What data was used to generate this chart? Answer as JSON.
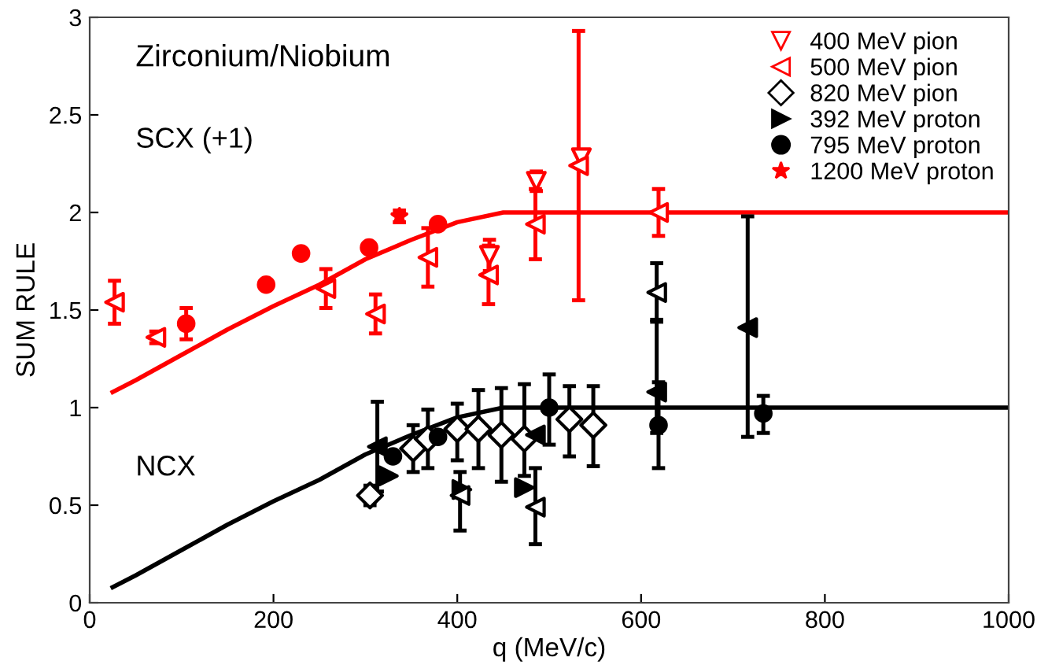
{
  "chart_data": {
    "type": "scatter",
    "title": "Zirconium/Niobium",
    "xlabel": "q (MeV/c)",
    "ylabel": "SUM RULE",
    "xlim": [
      0,
      1000
    ],
    "xticks": [
      0,
      200,
      400,
      600,
      800,
      1000
    ],
    "ylim": [
      0,
      3
    ],
    "yticks": [
      0,
      0.5,
      1,
      1.5,
      2,
      2.5,
      3
    ],
    "grid": false,
    "legend": "top right",
    "annotations": [
      "SCX (+1)",
      "NCX"
    ],
    "series": [
      {
        "type": "line",
        "color": "#ff0000",
        "marker": "none",
        "line_style": "solid",
        "x": [
          25,
          50,
          100,
          150,
          200,
          250,
          300,
          350,
          400,
          450,
          1000
        ],
        "values": [
          1.08,
          1.14,
          1.27,
          1.4,
          1.52,
          1.63,
          1.76,
          1.86,
          1.95,
          2.0,
          2.0
        ]
      },
      {
        "type": "line",
        "color": "#000000",
        "marker": "none",
        "line_style": "solid",
        "x": [
          25,
          50,
          100,
          150,
          200,
          250,
          300,
          350,
          400,
          450,
          1000
        ],
        "values": [
          0.08,
          0.14,
          0.27,
          0.4,
          0.52,
          0.63,
          0.76,
          0.86,
          0.95,
          1.0,
          1.0
        ]
      },
      {
        "name": "400 MeV pion",
        "color": "#ff0000",
        "marker": "triangle-down-open",
        "x": [
          435,
          486,
          535
        ],
        "values": [
          1.78,
          2.16,
          2.28
        ],
        "errors": [
          0.08,
          0.05,
          null
        ]
      },
      {
        "name": "500 MeV pion",
        "color": "#ff0000",
        "marker": "triangle-left-open",
        "x": [
          27,
          72,
          257,
          311,
          368,
          434,
          485,
          532,
          619
        ],
        "values": [
          1.54,
          1.36,
          1.61,
          1.48,
          1.77,
          1.68,
          1.94,
          2.24,
          2.0
        ],
        "errors": [
          0.11,
          0.03,
          0.1,
          0.1,
          0.15,
          0.15,
          0.18,
          [
            1.55,
            2.93
          ],
          0.12
        ]
      },
      {
        "name": "820 MeV pion",
        "color": "#000000",
        "marker": "diamond-open",
        "x": [
          305,
          352,
          368,
          400,
          423,
          448,
          473,
          522,
          548
        ],
        "values": [
          0.55,
          0.79,
          0.84,
          0.89,
          0.89,
          0.86,
          0.84,
          0.94,
          0.91
        ],
        "errors": [
          0.05,
          0.12,
          0.15,
          [
            0.73,
            1.02
          ],
          [
            0.69,
            1.09
          ],
          [
            0.62,
            1.1
          ],
          [
            0.65,
            1.12
          ],
          [
            0.75,
            1.11
          ],
          [
            0.7,
            1.11
          ]
        ]
      },
      {
        "name": "392 MeV proton",
        "color": "#000000",
        "marker": "triangle-right",
        "x": [
          325,
          405,
          473
        ],
        "values": [
          0.65,
          0.58,
          0.59
        ],
        "errors": [
          null,
          null,
          null
        ]
      },
      {
        "name": "795 MeV proton",
        "color": "#000000",
        "marker": "circle",
        "x": [
          330,
          379,
          500,
          619,
          733
        ],
        "values": [
          0.75,
          0.85,
          1.0,
          0.91,
          0.97
        ],
        "errors": [
          null,
          null,
          [
            0.81,
            1.17
          ],
          0.22,
          [
            0.87,
            1.06
          ]
        ]
      },
      {
        "name": "1200 MeV proton",
        "color": "#ff0000",
        "marker": "star",
        "x": [
          337
        ],
        "values": [
          1.98
        ],
        "errors": [
          0.03
        ]
      },
      {
        "color": "#ff0000",
        "marker": "circle",
        "x": [
          105,
          192,
          230,
          304,
          379
        ],
        "values": [
          1.43,
          1.63,
          1.79,
          1.82,
          1.94
        ],
        "errors": [
          0.08,
          null,
          null,
          null,
          null
        ]
      },
      {
        "color": "#000000",
        "marker": "triangle-left-open",
        "x": [
          403,
          485,
          617
        ],
        "values": [
          0.55,
          0.49,
          1.59
        ],
        "errors": [
          [
            0.37,
            0.67
          ],
          [
            0.3,
            0.69
          ],
          0.15
        ]
      },
      {
        "color": "#000000",
        "marker": "triangle-left",
        "x": [
          313,
          485,
          617,
          716
        ],
        "values": [
          0.8,
          0.86,
          1.08,
          1.41
        ],
        "errors": [
          0.23,
          null,
          [
            0.87,
            1.45
          ],
          [
            0.85,
            1.98
          ]
        ]
      }
    ]
  }
}
